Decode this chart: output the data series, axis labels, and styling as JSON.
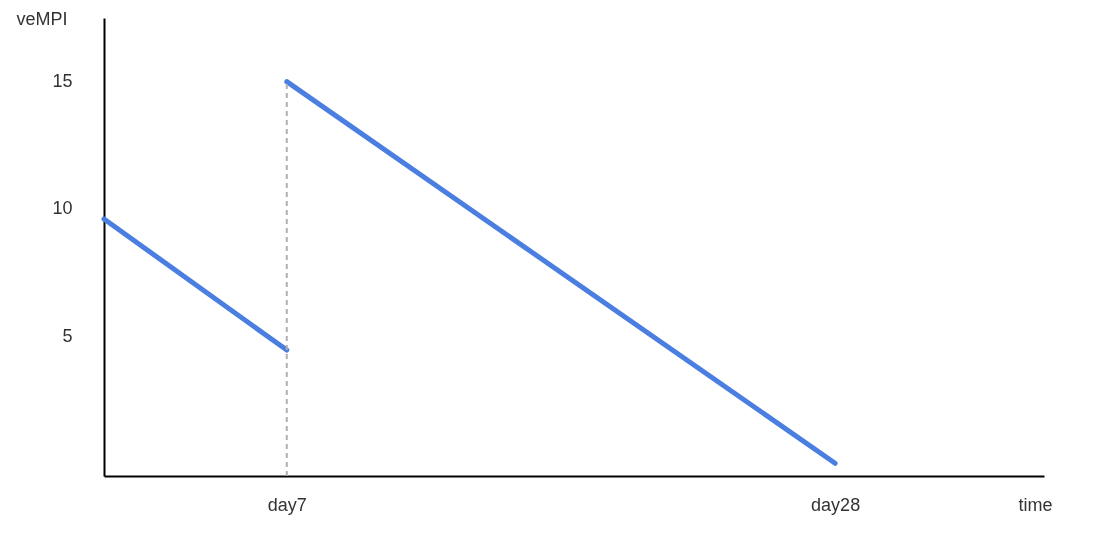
{
  "chart_data": {
    "type": "line",
    "xlabel": "time",
    "ylabel": "veMPI",
    "categories": [
      null,
      null,
      null,
      null,
      null,
      null,
      null,
      "day7",
      null,
      null,
      null,
      null,
      null,
      null,
      null,
      null,
      null,
      null,
      null,
      null,
      null,
      null,
      null,
      null,
      null,
      null,
      null,
      null,
      "day28",
      null,
      null,
      null,
      null,
      null,
      null,
      null,
      null
    ],
    "ylim": [
      -0.5,
      17.5
    ],
    "yticks": [
      5,
      10,
      15
    ],
    "series": [
      {
        "color": "#4a7ee0",
        "values": [
          9.6,
          null,
          null,
          null,
          null,
          null,
          null,
          4.45,
          null,
          null,
          null,
          null,
          null,
          null,
          null,
          null,
          null,
          null,
          null,
          null,
          null,
          null,
          null,
          null,
          null,
          null,
          null,
          null,
          null,
          null,
          null,
          null,
          null,
          null,
          null,
          null,
          null
        ]
      },
      {
        "color": "#4a7ee0",
        "values": [
          null,
          null,
          null,
          null,
          null,
          null,
          null,
          15,
          null,
          null,
          null,
          null,
          null,
          null,
          null,
          null,
          null,
          null,
          null,
          null,
          null,
          null,
          null,
          null,
          null,
          null,
          null,
          null,
          0,
          null,
          null,
          null,
          null,
          null,
          null,
          null,
          null
        ]
      }
    ],
    "ref_lines": [
      {
        "axis": "x",
        "value": "day7",
        "color": "#b0b0b0",
        "line_style": "dashed"
      }
    ],
    "marker": "none",
    "line_style": "solid"
  }
}
